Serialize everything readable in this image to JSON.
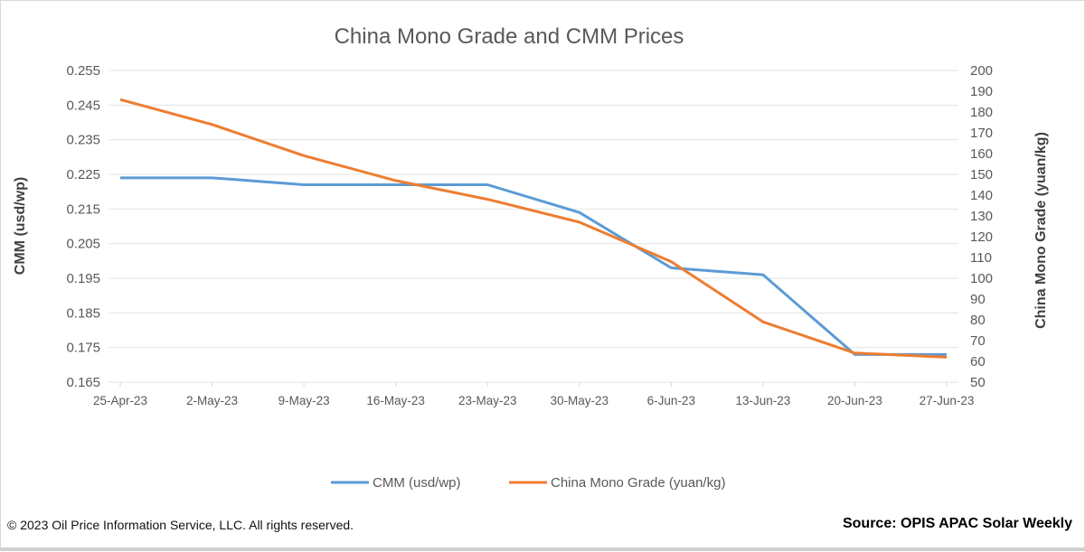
{
  "chart_data": {
    "type": "line",
    "title": "China Mono Grade and CMM Prices",
    "x": [
      "25-Apr-23",
      "2-May-23",
      "9-May-23",
      "16-May-23",
      "23-May-23",
      "30-May-23",
      "6-Jun-23",
      "13-Jun-23",
      "20-Jun-23",
      "27-Jun-23"
    ],
    "ylabel": "CMM (usd/wp)",
    "y2label": "China Mono Grade (yuan/kg)",
    "ylim": [
      0.165,
      0.255
    ],
    "y2lim": [
      50,
      200
    ],
    "yticks": [
      "0.255",
      "0.245",
      "0.235",
      "0.225",
      "0.215",
      "0.205",
      "0.195",
      "0.185",
      "0.175",
      "0.165"
    ],
    "y2ticks": [
      "200",
      "190",
      "180",
      "170",
      "160",
      "150",
      "140",
      "130",
      "120",
      "110",
      "100",
      "90",
      "80",
      "70",
      "60",
      "50"
    ],
    "grid": true,
    "legend_position": "bottom",
    "series": [
      {
        "name": "CMM (usd/wp)",
        "axis": "left",
        "color": "#5b9bd5",
        "values": [
          0.224,
          0.224,
          0.222,
          0.222,
          0.222,
          0.214,
          0.198,
          0.196,
          0.173,
          0.173
        ]
      },
      {
        "name": "China Mono Grade (yuan/kg)",
        "axis": "right",
        "color": "#ed7d31",
        "values": [
          186,
          174,
          159,
          147,
          138,
          127,
          108,
          79,
          64,
          62
        ]
      }
    ]
  },
  "footer": {
    "copyright": "© 2023 Oil Price Information Service, LLC. All rights reserved.",
    "source": "Source: OPIS APAC Solar Weekly"
  }
}
